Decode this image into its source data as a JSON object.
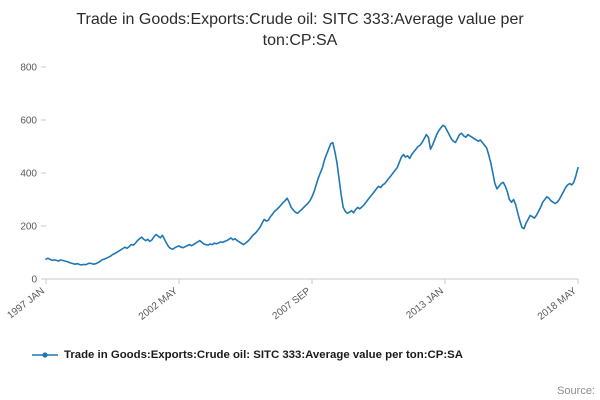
{
  "title": "Trade in Goods:Exports:Crude oil: SITC 333:Average value per ton:CP:SA",
  "source_label": "Source:",
  "legend": {
    "label": "Trade in Goods:Exports:Crude oil: SITC 333:Average value per ton:CP:SA"
  },
  "colors": {
    "line": "#1f77b4",
    "axis": "#c8c8c8",
    "tick_label": "#595959"
  },
  "chart_data": {
    "type": "line",
    "title": "Trade in Goods:Exports:Crude oil: SITC 333:Average value per ton:CP:SA",
    "xlabel": "",
    "ylabel": "",
    "ylim": [
      0,
      800
    ],
    "y_ticks": [
      0,
      200,
      400,
      600,
      800
    ],
    "grid": false,
    "legend_position": "bottom-left",
    "x_start": "1997 JAN",
    "x_end": "2018 MAY",
    "x_frequency": "monthly",
    "x_tick_labels": [
      "1997 JAN",
      "2002 MAY",
      "2007 SEP",
      "2013 JAN",
      "2018 MAY"
    ],
    "x_tick_indices": [
      0,
      64,
      128,
      192,
      256
    ],
    "series": [
      {
        "name": "Trade in Goods:Exports:Crude oil: SITC 333:Average value per ton:CP:SA",
        "color": "#1f77b4",
        "values": [
          75,
          78,
          74,
          70,
          72,
          70,
          68,
          72,
          70,
          68,
          66,
          63,
          60,
          58,
          56,
          58,
          55,
          53,
          55,
          54,
          57,
          60,
          58,
          56,
          58,
          62,
          66,
          72,
          75,
          78,
          82,
          86,
          92,
          96,
          100,
          105,
          110,
          115,
          120,
          116,
          122,
          130,
          128,
          135,
          145,
          152,
          158,
          150,
          145,
          150,
          142,
          148,
          160,
          168,
          162,
          155,
          165,
          150,
          135,
          122,
          115,
          112,
          118,
          122,
          125,
          120,
          118,
          122,
          126,
          130,
          126,
          130,
          135,
          140,
          145,
          138,
          132,
          130,
          128,
          132,
          130,
          135,
          133,
          136,
          140,
          138,
          142,
          145,
          150,
          155,
          148,
          152,
          145,
          140,
          135,
          130,
          135,
          142,
          150,
          160,
          168,
          175,
          185,
          195,
          210,
          225,
          218,
          222,
          235,
          245,
          255,
          262,
          270,
          278,
          288,
          295,
          305,
          290,
          270,
          260,
          252,
          248,
          255,
          262,
          270,
          278,
          285,
          295,
          310,
          330,
          355,
          380,
          400,
          420,
          450,
          470,
          490,
          510,
          515,
          480,
          440,
          380,
          320,
          270,
          255,
          248,
          252,
          258,
          250,
          262,
          270,
          265,
          272,
          280,
          290,
          300,
          310,
          320,
          330,
          340,
          350,
          345,
          355,
          360,
          370,
          380,
          390,
          400,
          410,
          420,
          440,
          460,
          470,
          460,
          465,
          455,
          470,
          480,
          490,
          500,
          505,
          515,
          530,
          545,
          535,
          490,
          505,
          525,
          545,
          560,
          570,
          580,
          575,
          560,
          545,
          530,
          520,
          515,
          530,
          545,
          550,
          540,
          535,
          545,
          540,
          535,
          530,
          525,
          520,
          525,
          515,
          505,
          495,
          470,
          440,
          400,
          360,
          340,
          350,
          360,
          365,
          350,
          330,
          300,
          290,
          300,
          280,
          250,
          220,
          195,
          190,
          210,
          225,
          240,
          235,
          230,
          240,
          255,
          270,
          290,
          300,
          310,
          305,
          295,
          290,
          285,
          290,
          300,
          315,
          330,
          345,
          355,
          360,
          355,
          365,
          390,
          420
        ]
      }
    ]
  }
}
